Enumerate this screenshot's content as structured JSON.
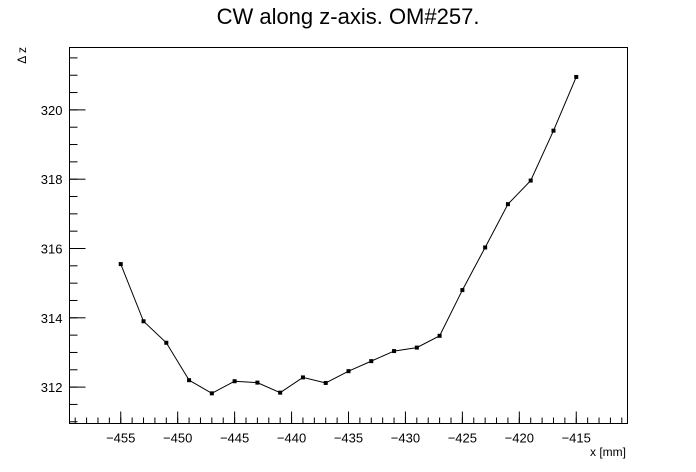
{
  "chart_data": {
    "type": "line",
    "title": "CW along z-axis. OM#257.",
    "xlabel": "x [mm]",
    "ylabel": "Δ z",
    "xlim": [
      -459.5,
      -410.5
    ],
    "ylim": [
      310.95,
      321.8
    ],
    "x_major_ticks": [
      -455,
      -450,
      -445,
      -440,
      -435,
      -430,
      -425,
      -420,
      -415
    ],
    "x_minor_step": 1,
    "y_major_ticks": [
      312,
      314,
      316,
      318,
      320
    ],
    "y_minor_step": 0.5,
    "grid": false,
    "legend": "none",
    "series": [
      {
        "color": "#000000",
        "x": [
          -455,
          -453,
          -451,
          -449,
          -447,
          -445,
          -443,
          -441,
          -439,
          -437,
          -435,
          -433,
          -431,
          -429,
          -427,
          -425,
          -423,
          -421,
          -419,
          -417,
          -415
        ],
        "y": [
          315.55,
          313.9,
          313.28,
          312.2,
          311.82,
          312.17,
          312.13,
          311.84,
          312.28,
          312.12,
          312.46,
          312.75,
          313.04,
          313.14,
          313.48,
          314.8,
          316.03,
          317.28,
          317.96,
          319.4,
          320.95
        ]
      }
    ]
  }
}
